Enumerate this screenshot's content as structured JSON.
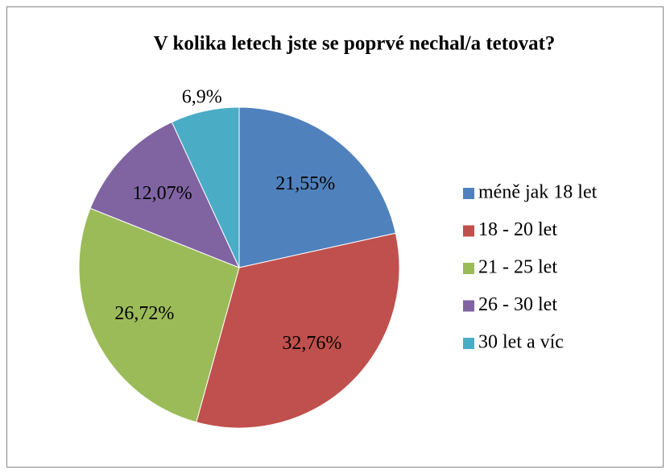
{
  "chart_data": {
    "type": "pie",
    "title": "V kolika letech jste se poprvé nechal/a tetovat?",
    "categories": [
      "méně jak 18 let",
      "18 - 20 let",
      "21 - 25 let",
      "26 - 30 let",
      "30 let a víc"
    ],
    "values": [
      21.55,
      32.76,
      26.72,
      12.07,
      6.9
    ],
    "value_labels": [
      "21,55%",
      "32,76%",
      "26,72%",
      "12,07%",
      "6,9%"
    ],
    "colors": [
      "#4f81bd",
      "#c0504d",
      "#9bbb59",
      "#8064a2",
      "#4bacc6"
    ],
    "legend": "right"
  }
}
